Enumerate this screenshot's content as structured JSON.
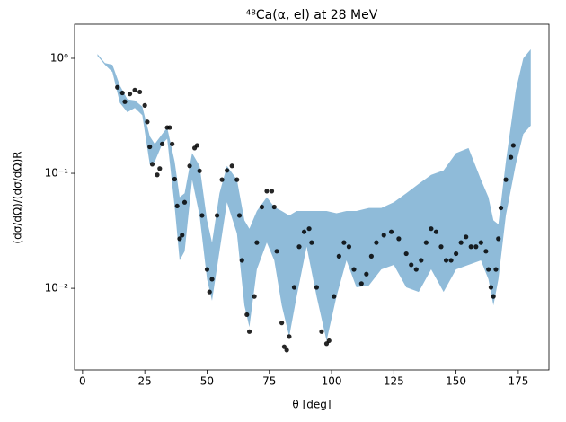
{
  "chart_data": {
    "type": "scatter",
    "title": "⁴⁸Ca(α, el) at 28 MeV",
    "x_label": "θ [deg]",
    "y_label": "(dσ/dΩ)/(dσ/dΩ)R",
    "y_log": true,
    "xlim": [
      -3.2,
      187.3
    ],
    "ylim": [
      0.00195,
      1.98
    ],
    "xticks": [
      0,
      25,
      50,
      75,
      100,
      125,
      150,
      175
    ],
    "yticks": [
      {
        "value": 1,
        "label": "10⁰"
      },
      {
        "value": 0.1,
        "label": "10⁻¹"
      },
      {
        "value": 0.01,
        "label": "10⁻²"
      }
    ],
    "band": {
      "color": "#8fbbd9",
      "x": [
        6,
        9,
        12,
        15,
        18,
        21,
        24,
        27,
        29,
        32,
        34,
        37,
        39,
        41,
        44,
        47,
        50,
        52,
        55,
        58,
        62,
        65,
        67,
        70,
        74,
        77,
        80,
        83,
        86,
        90,
        94,
        98,
        102,
        106,
        110,
        115,
        120,
        125,
        130,
        135,
        140,
        145,
        150,
        155,
        160,
        163,
        165,
        167,
        170,
        174,
        177,
        180
      ],
      "upper": [
        1.09,
        0.91,
        0.88,
        0.58,
        0.44,
        0.43,
        0.38,
        0.21,
        0.18,
        0.22,
        0.25,
        0.126,
        0.062,
        0.067,
        0.15,
        0.116,
        0.039,
        0.025,
        0.067,
        0.116,
        0.088,
        0.039,
        0.033,
        0.047,
        0.062,
        0.051,
        0.047,
        0.043,
        0.047,
        0.047,
        0.047,
        0.047,
        0.045,
        0.047,
        0.047,
        0.05,
        0.05,
        0.056,
        0.067,
        0.081,
        0.097,
        0.106,
        0.15,
        0.166,
        0.088,
        0.062,
        0.039,
        0.036,
        0.126,
        0.53,
        1.0,
        1.2
      ],
      "lower": [
        1.05,
        0.88,
        0.76,
        0.41,
        0.34,
        0.37,
        0.32,
        0.12,
        0.126,
        0.18,
        0.2,
        0.051,
        0.0175,
        0.021,
        0.088,
        0.043,
        0.012,
        0.0078,
        0.021,
        0.056,
        0.03,
        0.0071,
        0.0046,
        0.0146,
        0.025,
        0.0175,
        0.0071,
        0.0038,
        0.0085,
        0.023,
        0.0085,
        0.0035,
        0.0085,
        0.0175,
        0.0102,
        0.0106,
        0.0146,
        0.016,
        0.0102,
        0.0093,
        0.0146,
        0.0093,
        0.0146,
        0.016,
        0.0175,
        0.012,
        0.0071,
        0.012,
        0.043,
        0.12,
        0.22,
        0.26
      ]
    },
    "points": {
      "color": "#000000",
      "x": [
        14,
        16,
        17,
        19,
        21,
        23,
        25,
        26,
        27,
        28,
        30,
        31,
        32,
        34,
        35,
        36,
        37,
        38,
        39,
        40,
        41,
        43,
        45,
        46,
        47,
        48,
        50,
        51,
        52,
        54,
        56,
        58,
        60,
        62,
        63,
        64,
        66,
        67,
        69,
        70,
        72,
        74,
        76,
        77,
        78,
        80,
        81,
        82,
        83,
        85,
        87,
        89,
        91,
        92,
        94,
        96,
        98,
        99,
        101,
        103,
        105,
        107,
        109,
        112,
        114,
        116,
        118,
        121,
        124,
        127,
        130,
        132,
        134,
        136,
        138,
        140,
        142,
        144,
        146,
        148,
        150,
        152,
        154,
        156,
        158,
        160,
        162,
        163,
        164,
        165,
        166,
        167,
        168,
        170,
        172,
        173
      ],
      "values": [
        0.56,
        0.5,
        0.42,
        0.49,
        0.53,
        0.51,
        0.39,
        0.28,
        0.17,
        0.12,
        0.097,
        0.11,
        0.18,
        0.25,
        0.25,
        0.18,
        0.089,
        0.052,
        0.027,
        0.029,
        0.056,
        0.116,
        0.166,
        0.175,
        0.105,
        0.043,
        0.0146,
        0.0093,
        0.012,
        0.043,
        0.088,
        0.106,
        0.116,
        0.088,
        0.043,
        0.0175,
        0.0059,
        0.0042,
        0.0085,
        0.025,
        0.051,
        0.07,
        0.07,
        0.051,
        0.021,
        0.005,
        0.0031,
        0.0029,
        0.0038,
        0.0102,
        0.023,
        0.031,
        0.033,
        0.025,
        0.0102,
        0.0042,
        0.0033,
        0.0035,
        0.0085,
        0.019,
        0.025,
        0.023,
        0.0146,
        0.011,
        0.0133,
        0.019,
        0.025,
        0.029,
        0.031,
        0.027,
        0.02,
        0.016,
        0.0146,
        0.0175,
        0.025,
        0.033,
        0.031,
        0.023,
        0.0175,
        0.0175,
        0.02,
        0.025,
        0.028,
        0.023,
        0.023,
        0.025,
        0.021,
        0.0146,
        0.0102,
        0.0085,
        0.0146,
        0.027,
        0.05,
        0.088,
        0.138,
        0.175
      ]
    }
  }
}
